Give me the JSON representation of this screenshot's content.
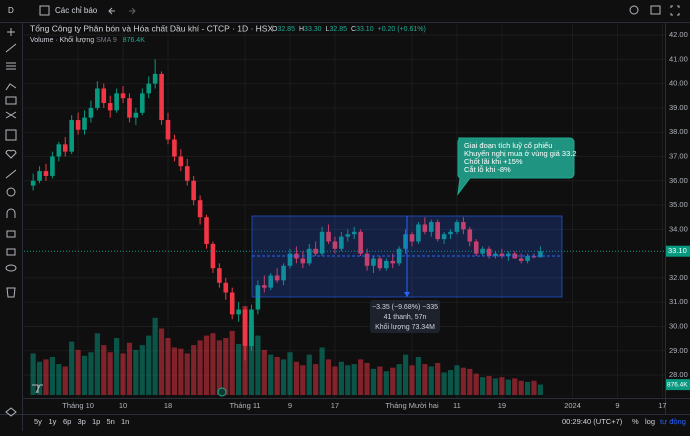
{
  "toolbar": {
    "interval": "D",
    "indicators": "Các chỉ báo"
  },
  "bottom_bar": {
    "ranges": [
      "5y",
      "1y",
      "6p",
      "3p",
      "1p",
      "5n",
      "1n"
    ],
    "clock": "00:29:40 (UTC+7)",
    "scale_options": [
      "%",
      "log",
      "tự động"
    ]
  },
  "chart_data": {
    "type": "candlestick",
    "title": "Tổng Công ty Phân bón và Hóa chất Dầu khí - CTCP · 1D · HSX",
    "ohlc_legend": [
      [
        "O",
        "32.85"
      ],
      [
        "H",
        "33.30"
      ],
      [
        "L",
        "32.85"
      ],
      [
        "C",
        "33.10"
      ]
    ],
    "change": "+0.20 (+0.61%)",
    "volume_legend": {
      "name": "Volume · Khối lượng",
      "indicator": "SMA 9",
      "value": "876.4K"
    },
    "up_color": "#089981",
    "down_color": "#f23645",
    "grid": true,
    "xlim": [
      -0.8,
      98.4
    ],
    "xticks": [
      {
        "value": 7,
        "label": "Tháng 10"
      },
      {
        "value": 14,
        "label": "10"
      },
      {
        "value": 21,
        "label": "18"
      },
      {
        "value": 33,
        "label": "Tháng 11"
      },
      {
        "value": 40,
        "label": "9"
      },
      {
        "value": 47,
        "label": "17"
      },
      {
        "value": 59,
        "label": "Tháng Mười hai"
      },
      {
        "value": 66,
        "label": "11"
      },
      {
        "value": 73,
        "label": "19"
      },
      {
        "value": 84,
        "label": "2024"
      },
      {
        "value": 91,
        "label": "9"
      },
      {
        "value": 98,
        "label": "17"
      }
    ],
    "ylim": [
      27.18,
      42.29
    ],
    "yticks": [
      {
        "value": 28,
        "label": "28.00"
      },
      {
        "value": 29,
        "label": "29.00"
      },
      {
        "value": 30,
        "label": "30.00"
      },
      {
        "value": 31,
        "label": "31.00"
      },
      {
        "value": 32,
        "label": "32.00"
      },
      {
        "value": 34,
        "label": "34.00"
      },
      {
        "value": 35,
        "label": "35.00"
      },
      {
        "value": 36,
        "label": "36.00"
      },
      {
        "value": 37,
        "label": "37.00"
      },
      {
        "value": 38,
        "label": "38.00"
      },
      {
        "value": 39,
        "label": "39.00"
      },
      {
        "value": 40,
        "label": "40.00"
      },
      {
        "value": 41,
        "label": "41.00"
      },
      {
        "value": 42,
        "label": "42.00"
      }
    ],
    "volume_ylim": [
      0,
      8000
    ],
    "last_price_label": "33.10",
    "last_volume_label": "876.4K",
    "ohlc": [
      [
        35.8,
        36.3,
        35.6,
        36.0
      ],
      [
        36.0,
        36.6,
        35.9,
        36.4
      ],
      [
        36.4,
        36.7,
        36.0,
        36.2
      ],
      [
        36.2,
        37.2,
        36.1,
        37.0
      ],
      [
        37.0,
        37.6,
        36.8,
        37.5
      ],
      [
        37.5,
        37.8,
        37.0,
        37.2
      ],
      [
        37.2,
        38.7,
        37.1,
        38.5
      ],
      [
        38.5,
        38.8,
        37.9,
        38.1
      ],
      [
        38.1,
        38.9,
        37.9,
        38.6
      ],
      [
        38.6,
        39.3,
        38.4,
        39.0
      ],
      [
        39.0,
        40.1,
        38.9,
        39.8
      ],
      [
        39.8,
        40.0,
        39.0,
        39.2
      ],
      [
        39.2,
        39.5,
        38.6,
        38.9
      ],
      [
        38.9,
        39.8,
        38.8,
        39.6
      ],
      [
        39.6,
        39.9,
        39.2,
        39.4
      ],
      [
        39.4,
        39.6,
        38.4,
        38.6
      ],
      [
        38.6,
        39.0,
        38.3,
        38.8
      ],
      [
        38.8,
        39.8,
        38.7,
        39.6
      ],
      [
        39.6,
        40.3,
        39.4,
        40.0
      ],
      [
        40.0,
        41.0,
        39.8,
        40.4
      ],
      [
        40.4,
        40.5,
        38.3,
        38.5
      ],
      [
        38.5,
        38.8,
        37.5,
        37.7
      ],
      [
        37.7,
        37.9,
        36.8,
        37.0
      ],
      [
        37.0,
        37.3,
        36.4,
        36.6
      ],
      [
        36.6,
        36.9,
        35.8,
        36.0
      ],
      [
        36.0,
        36.2,
        35.0,
        35.2
      ],
      [
        35.2,
        35.4,
        34.2,
        34.5
      ],
      [
        34.5,
        34.6,
        33.2,
        33.4
      ],
      [
        33.4,
        33.5,
        32.2,
        32.4
      ],
      [
        32.4,
        32.6,
        31.6,
        31.8
      ],
      [
        31.8,
        32.0,
        31.1,
        31.4
      ],
      [
        31.4,
        31.6,
        30.3,
        30.5
      ],
      [
        30.5,
        31.0,
        30.2,
        30.7
      ],
      [
        30.7,
        30.8,
        28.6,
        29.2
      ],
      [
        29.2,
        30.9,
        29.0,
        30.7
      ],
      [
        30.7,
        31.9,
        30.5,
        31.7
      ],
      [
        31.7,
        32.1,
        31.4,
        31.6
      ],
      [
        31.6,
        32.2,
        31.5,
        32.1
      ],
      [
        32.1,
        32.4,
        31.8,
        31.9
      ],
      [
        31.9,
        32.6,
        31.7,
        32.5
      ],
      [
        32.5,
        33.2,
        32.4,
        33.0
      ],
      [
        33.0,
        33.3,
        32.6,
        32.8
      ],
      [
        32.8,
        33.1,
        32.4,
        32.6
      ],
      [
        32.6,
        33.4,
        32.5,
        33.2
      ],
      [
        33.2,
        33.5,
        32.9,
        33.0
      ],
      [
        33.0,
        34.1,
        32.9,
        33.9
      ],
      [
        33.9,
        34.2,
        33.4,
        33.5
      ],
      [
        33.5,
        33.7,
        33.0,
        33.2
      ],
      [
        33.2,
        33.9,
        33.1,
        33.7
      ],
      [
        33.7,
        34.0,
        33.5,
        33.8
      ],
      [
        33.8,
        34.1,
        33.6,
        33.9
      ],
      [
        33.9,
        34.0,
        32.9,
        33.0
      ],
      [
        33.0,
        33.2,
        32.3,
        32.5
      ],
      [
        32.5,
        32.9,
        32.2,
        32.8
      ],
      [
        32.8,
        32.9,
        32.3,
        32.4
      ],
      [
        32.4,
        32.8,
        32.3,
        32.7
      ],
      [
        32.7,
        33.0,
        32.4,
        32.6
      ],
      [
        32.6,
        33.3,
        32.5,
        33.2
      ],
      [
        33.2,
        34.0,
        33.0,
        33.8
      ],
      [
        33.8,
        33.9,
        33.3,
        33.5
      ],
      [
        33.5,
        34.3,
        33.4,
        34.2
      ],
      [
        34.2,
        34.5,
        33.8,
        33.9
      ],
      [
        33.9,
        34.4,
        33.7,
        34.3
      ],
      [
        34.3,
        34.4,
        33.5,
        33.6
      ],
      [
        33.6,
        33.9,
        33.4,
        33.8
      ],
      [
        33.8,
        34.0,
        33.6,
        33.9
      ],
      [
        33.9,
        34.4,
        33.8,
        34.3
      ],
      [
        34.3,
        34.5,
        33.8,
        34.0
      ],
      [
        34.0,
        34.1,
        33.3,
        33.5
      ],
      [
        33.5,
        33.6,
        32.9,
        33.0
      ],
      [
        33.0,
        33.3,
        32.9,
        33.2
      ],
      [
        33.2,
        33.3,
        32.8,
        32.9
      ],
      [
        32.9,
        33.1,
        32.8,
        33.0
      ],
      [
        33.0,
        33.2,
        32.8,
        32.9
      ],
      [
        32.9,
        33.1,
        32.7,
        33.0
      ],
      [
        33.0,
        33.1,
        32.8,
        32.8
      ],
      [
        32.8,
        33.0,
        32.6,
        32.7
      ],
      [
        32.7,
        33.0,
        32.6,
        32.9
      ],
      [
        32.9,
        33.0,
        32.8,
        32.85
      ],
      [
        32.85,
        33.3,
        32.85,
        33.1
      ]
    ],
    "volume": [
      3500,
      2800,
      3000,
      3200,
      2600,
      2400,
      4500,
      3800,
      3300,
      3600,
      5200,
      4200,
      3600,
      4800,
      3500,
      4400,
      3800,
      4200,
      5000,
      6500,
      5600,
      4800,
      4000,
      3900,
      3500,
      4200,
      4600,
      5000,
      5200,
      4600,
      4800,
      5400,
      4300,
      7500,
      6200,
      5000,
      3800,
      3400,
      3200,
      3000,
      3600,
      2800,
      2500,
      3400,
      2600,
      4000,
      3000,
      2400,
      2800,
      2500,
      2600,
      3000,
      2700,
      2200,
      2400,
      2000,
      2300,
      2600,
      3400,
      2500,
      3200,
      2600,
      2400,
      2700,
      1900,
      2100,
      2500,
      2300,
      2200,
      1800,
      1500,
      1600,
      1400,
      1500,
      1300,
      1400,
      1200,
      1100,
      1200,
      876.4
    ],
    "annotation": [
      "Giai đoạn tích luỹ cổ phiếu",
      "Khuyến nghị mua ở vùng giá 33.2",
      "Chốt lãi khi +15%",
      "Cắt lỗ khi -8%"
    ],
    "measure": [
      "−3.35 (−9.68%) −335",
      "41 thanh, 57n",
      "Khối lượng 73.34M"
    ]
  }
}
